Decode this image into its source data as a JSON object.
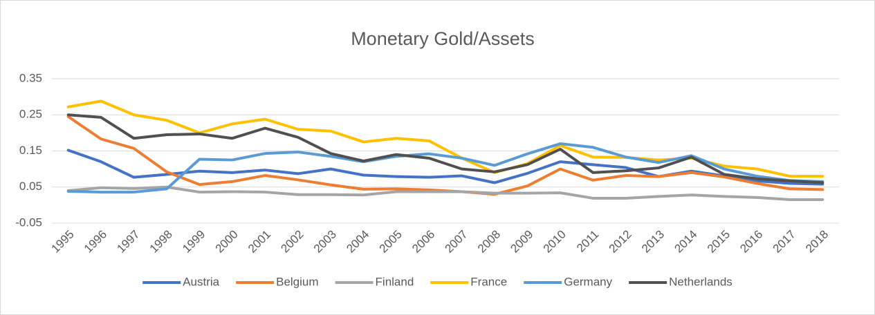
{
  "chart_data": {
    "type": "line",
    "title": "Monetary Gold/Assets",
    "categories": [
      "1995",
      "1996",
      "1997",
      "1998",
      "1999",
      "2000",
      "2001",
      "2002",
      "2003",
      "2004",
      "2005",
      "2006",
      "2007",
      "2008",
      "2009",
      "2010",
      "2011",
      "2012",
      "2013",
      "2014",
      "2015",
      "2016",
      "2017",
      "2018"
    ],
    "series": [
      {
        "name": "Austria",
        "color": "#4472c4",
        "values": [
          0.152,
          0.12,
          0.077,
          0.085,
          0.094,
          0.09,
          0.097,
          0.087,
          0.1,
          0.083,
          0.079,
          0.077,
          0.081,
          0.062,
          0.088,
          0.12,
          0.112,
          0.104,
          0.079,
          0.094,
          0.081,
          0.067,
          0.06,
          0.058
        ]
      },
      {
        "name": "Belgium",
        "color": "#ed7d31",
        "values": [
          0.245,
          0.183,
          0.157,
          0.092,
          0.057,
          0.065,
          0.082,
          0.07,
          0.056,
          0.044,
          0.045,
          0.042,
          0.037,
          0.03,
          0.053,
          0.1,
          0.069,
          0.082,
          0.079,
          0.09,
          0.078,
          0.06,
          0.045,
          0.043
        ]
      },
      {
        "name": "Finland",
        "color": "#a5a5a5",
        "values": [
          0.04,
          0.048,
          0.046,
          0.05,
          0.036,
          0.037,
          0.036,
          0.029,
          0.029,
          0.028,
          0.037,
          0.037,
          0.037,
          0.033,
          0.033,
          0.034,
          0.019,
          0.019,
          0.024,
          0.028,
          0.024,
          0.021,
          0.015,
          0.015
        ]
      },
      {
        "name": "France",
        "color": "#ffc000",
        "values": [
          0.272,
          0.288,
          0.25,
          0.235,
          0.2,
          0.225,
          0.238,
          0.21,
          0.205,
          0.175,
          0.185,
          0.178,
          0.13,
          0.09,
          0.115,
          0.165,
          0.133,
          0.132,
          0.125,
          0.13,
          0.108,
          0.1,
          0.08,
          0.08
        ]
      },
      {
        "name": "Germany",
        "color": "#5b9bd5",
        "values": [
          0.038,
          0.036,
          0.036,
          0.045,
          0.127,
          0.125,
          0.143,
          0.147,
          0.135,
          0.12,
          0.135,
          0.142,
          0.13,
          0.11,
          0.142,
          0.17,
          0.16,
          0.133,
          0.118,
          0.137,
          0.1,
          0.08,
          0.068,
          0.065
        ]
      },
      {
        "name": "Netherlands",
        "color": "#505050",
        "values": [
          0.25,
          0.243,
          0.185,
          0.195,
          0.197,
          0.185,
          0.213,
          0.188,
          0.143,
          0.122,
          0.14,
          0.13,
          0.1,
          0.092,
          0.112,
          0.155,
          0.09,
          0.095,
          0.103,
          0.133,
          0.085,
          0.073,
          0.067,
          0.062
        ]
      }
    ],
    "ylim": [
      -0.05,
      0.35
    ],
    "yticks": [
      -0.05,
      0.05,
      0.15,
      0.25,
      0.35
    ],
    "grid": true,
    "legend": "bottom"
  }
}
